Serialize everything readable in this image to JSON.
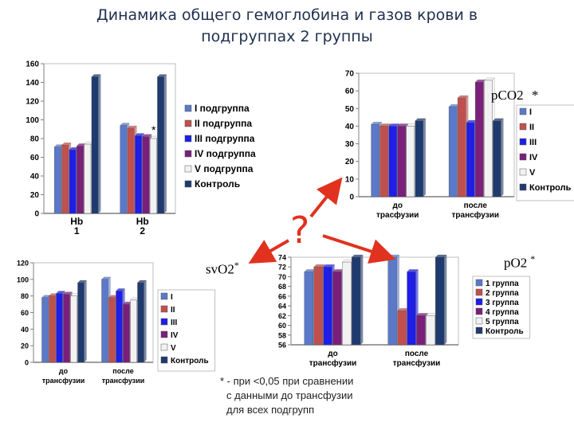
{
  "title_line1": "Динамика общего гемоглобина и газов крови в",
  "title_line2": "подгруппах 2 группы",
  "question_mark": "?",
  "footnote": [
    "* - при <0,05 при сравнении",
    "с данными до трансфузии",
    "для всех подгрупп"
  ],
  "colors": {
    "blue": "#5b79c9",
    "red": "#c0504d",
    "bright_blue": "#1e1ee6",
    "purple": "#7a1f7a",
    "white": "#f2f2f2",
    "navy": "#1f3a6e",
    "arrow": "#e0321e"
  },
  "chart_data": [
    {
      "id": "hb",
      "type": "bar",
      "categories": [
        "Hb 1",
        "Hb 2"
      ],
      "ylim": [
        0,
        160
      ],
      "yticks": [
        "0",
        "20",
        "40",
        "60",
        "80",
        "100",
        "120",
        "140",
        "160"
      ],
      "series": [
        {
          "name": "I подгруппа",
          "color": "blue",
          "values": [
            71,
            94
          ]
        },
        {
          "name": "II подгруппа",
          "color": "red",
          "values": [
            73,
            91
          ]
        },
        {
          "name": "III подгруппа",
          "color": "bright_blue",
          "values": [
            68,
            83
          ]
        },
        {
          "name": "IV подгруппа",
          "color": "purple",
          "values": [
            72,
            82
          ]
        },
        {
          "name": "V подгруппа",
          "color": "white",
          "values": [
            74,
            80
          ]
        },
        {
          "name": "Контроль",
          "color": "navy",
          "values": [
            146,
            146
          ]
        }
      ],
      "annotations": [
        {
          "text": "*",
          "series": 4,
          "category": 1
        }
      ],
      "legend": "right",
      "grid": false
    },
    {
      "id": "pco2",
      "type": "bar",
      "label": "pCO2",
      "star": "*",
      "categories": [
        "до трасфузии",
        "после трансфузии"
      ],
      "ylim": [
        0,
        70
      ],
      "yticks": [
        "0",
        "10",
        "20",
        "30",
        "40",
        "50",
        "60",
        "70"
      ],
      "series": [
        {
          "name": "I",
          "color": "blue",
          "values": [
            41,
            51
          ]
        },
        {
          "name": "II",
          "color": "red",
          "values": [
            40,
            56
          ]
        },
        {
          "name": "III",
          "color": "bright_blue",
          "values": [
            40,
            42
          ]
        },
        {
          "name": "IV",
          "color": "purple",
          "values": [
            40,
            65
          ]
        },
        {
          "name": "V",
          "color": "white",
          "values": [
            40,
            66
          ]
        },
        {
          "name": "Контроль",
          "color": "navy",
          "values": [
            43,
            43
          ]
        }
      ],
      "legend": "right",
      "grid": false
    },
    {
      "id": "svo2",
      "type": "bar",
      "label": "svO2",
      "star": "*",
      "categories": [
        "до трансфузии",
        "после трансфузии"
      ],
      "ylim": [
        0,
        120
      ],
      "yticks": [
        "0",
        "20",
        "40",
        "60",
        "80",
        "100",
        "120"
      ],
      "series": [
        {
          "name": "I",
          "color": "blue",
          "values": [
            78,
            100
          ]
        },
        {
          "name": "II",
          "color": "red",
          "values": [
            80,
            78
          ]
        },
        {
          "name": "III",
          "color": "bright_blue",
          "values": [
            83,
            86
          ]
        },
        {
          "name": "IV",
          "color": "purple",
          "values": [
            82,
            70
          ]
        },
        {
          "name": "V",
          "color": "white",
          "values": [
            80,
            75
          ]
        },
        {
          "name": "Контроль",
          "color": "navy",
          "values": [
            96,
            96
          ]
        }
      ],
      "legend": "right",
      "grid": false
    },
    {
      "id": "po2",
      "type": "bar",
      "label": "pO2",
      "star": "*",
      "categories": [
        "до трансфузии",
        "после трансфузии"
      ],
      "ylim": [
        56,
        74
      ],
      "yticks": [
        "56",
        "58",
        "60",
        "62",
        "64",
        "66",
        "68",
        "70",
        "72",
        "74"
      ],
      "series": [
        {
          "name": "1 группа",
          "color": "blue",
          "values": [
            71,
            74
          ]
        },
        {
          "name": "2 группа",
          "color": "red",
          "values": [
            72,
            63
          ]
        },
        {
          "name": "3 группа",
          "color": "bright_blue",
          "values": [
            72,
            71
          ]
        },
        {
          "name": "4 группа",
          "color": "purple",
          "values": [
            71,
            62
          ]
        },
        {
          "name": "5 группа",
          "color": "white",
          "values": [
            73,
            62
          ]
        },
        {
          "name": "Контроль",
          "color": "navy",
          "values": [
            74,
            74
          ]
        }
      ],
      "legend": "right",
      "grid": false
    }
  ]
}
